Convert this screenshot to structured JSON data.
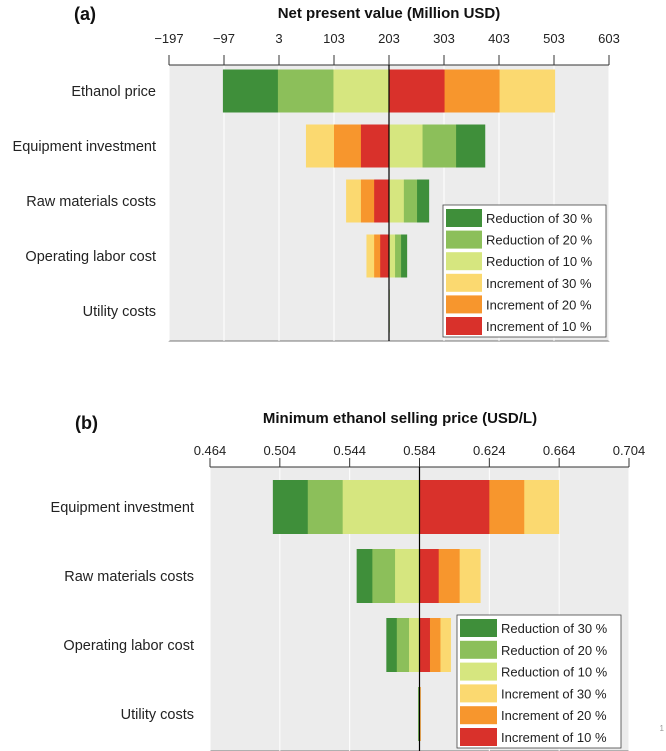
{
  "chart_data": [
    {
      "type": "bar",
      "orientation": "horizontal-tornado",
      "panel_label": "(a)",
      "title": "Net present value (Million USD)",
      "baseline": 203,
      "xlim": [
        -197,
        603
      ],
      "xticks": [
        "−197",
        "−97",
        "3",
        "103",
        "203",
        "303",
        "403",
        "503",
        "603"
      ],
      "xtick_values": [
        -197,
        -97,
        3,
        103,
        203,
        303,
        403,
        503,
        603
      ],
      "categories": [
        "Ethanol price",
        "Equipment investment",
        "Raw materials costs",
        "Operating labor cost",
        "Utility costs"
      ],
      "series": [
        {
          "name": "Reduction of 30 %",
          "color": "#3f8f3a",
          "values": [
            -99,
            378,
            276,
            236,
            203.5
          ]
        },
        {
          "name": "Reduction of 20 %",
          "color": "#8cbf5a",
          "values": [
            1,
            325,
            254,
            225,
            203.3
          ]
        },
        {
          "name": "Reduction of 10 %",
          "color": "#d6e67f",
          "values": [
            102,
            264,
            230,
            214,
            203.2
          ]
        },
        {
          "name": "Increment of 30 %",
          "color": "#fbd970",
          "values": [
            505,
            52,
            125,
            162,
            202.5
          ]
        },
        {
          "name": "Increment of 20 %",
          "color": "#f7962d",
          "values": [
            404,
            103,
            152,
            176,
            202.7
          ]
        },
        {
          "name": "Increment of 10 %",
          "color": "#d9312b",
          "values": [
            304,
            152,
            176,
            187,
            202.8
          ]
        }
      ],
      "grid": true,
      "legend_position": "lower-right"
    },
    {
      "type": "bar",
      "orientation": "horizontal-tornado",
      "panel_label": "(b)",
      "title": "Minimum ethanol selling price (USD/L)",
      "baseline": 0.584,
      "xlim": [
        0.464,
        0.704
      ],
      "xticks": [
        "0.464",
        "0.504",
        "0.544",
        "0.584",
        "0.624",
        "0.664",
        "0.704"
      ],
      "xtick_values": [
        0.464,
        0.504,
        0.544,
        0.584,
        0.624,
        0.664,
        0.704
      ],
      "categories": [
        "Equipment investment",
        "Raw materials costs",
        "Operating labor cost",
        "Utility costs"
      ],
      "series": [
        {
          "name": "Reduction of 30 %",
          "color": "#3f8f3a",
          "values": [
            0.5,
            0.548,
            0.565,
            0.5832
          ]
        },
        {
          "name": "Reduction of 20 %",
          "color": "#8cbf5a",
          "values": [
            0.52,
            0.557,
            0.571,
            0.5834
          ]
        },
        {
          "name": "Reduction of 10 %",
          "color": "#d6e67f",
          "values": [
            0.54,
            0.57,
            0.578,
            0.5837
          ]
        },
        {
          "name": "Increment of 30 %",
          "color": "#fbd970",
          "values": [
            0.664,
            0.619,
            0.602,
            0.5848
          ]
        },
        {
          "name": "Increment of 20 %",
          "color": "#f7962d",
          "values": [
            0.644,
            0.607,
            0.596,
            0.5846
          ]
        },
        {
          "name": "Increment of 10 %",
          "color": "#d9312b",
          "values": [
            0.624,
            0.595,
            0.59,
            0.5843
          ]
        }
      ],
      "grid": true,
      "legend_position": "lower-right"
    }
  ],
  "page_number": "1"
}
